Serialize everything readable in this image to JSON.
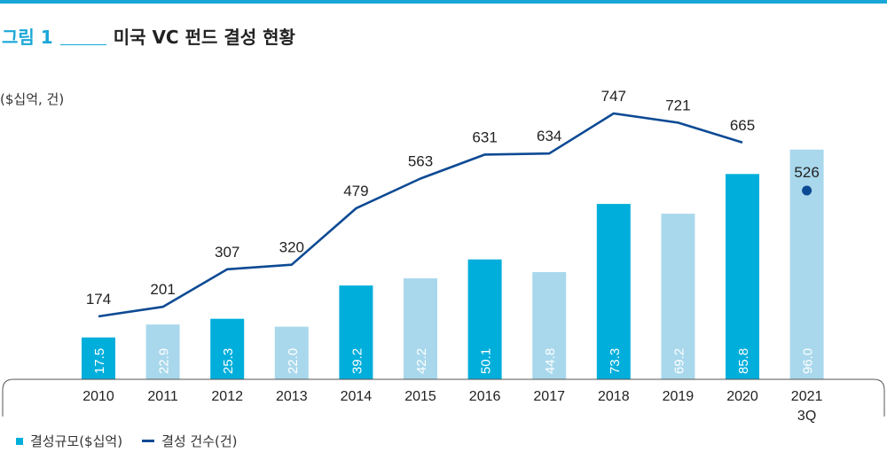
{
  "figure": {
    "label": "그림 1",
    "title": "미국 VC 펀드 결성 현황",
    "unit": "($십억, 건)"
  },
  "legend": {
    "bar_label": "결성규모($십억)",
    "line_label": "결성 건수(건)"
  },
  "colors": {
    "accent": "#1aa7d8",
    "bar_dark": "#00aedb",
    "bar_light": "#a9d8ec",
    "line": "#0d4a94"
  },
  "chart_data": {
    "type": "bar",
    "categories": [
      "2010",
      "2011",
      "2012",
      "2013",
      "2014",
      "2015",
      "2016",
      "2017",
      "2018",
      "2019",
      "2020",
      "2021 3Q"
    ],
    "series": [
      {
        "name": "결성규모($십억)",
        "type": "bar",
        "values": [
          17.5,
          22.9,
          25.3,
          22.0,
          39.2,
          42.2,
          50.1,
          44.8,
          73.3,
          69.2,
          85.8,
          96.0
        ],
        "shades": [
          "dark",
          "light",
          "dark",
          "light",
          "dark",
          "light",
          "dark",
          "light",
          "dark",
          "light",
          "dark",
          "light"
        ]
      },
      {
        "name": "결성 건수(건)",
        "type": "line",
        "values": [
          174,
          201,
          307,
          320,
          479,
          563,
          631,
          634,
          747,
          721,
          665,
          526
        ],
        "last_point_as_marker": true
      }
    ],
    "bar_value_range": [
      0,
      100
    ],
    "line_value_range": [
      0,
      800
    ]
  }
}
